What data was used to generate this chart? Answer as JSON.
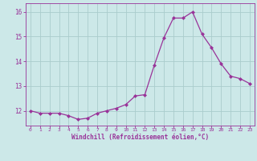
{
  "x": [
    0,
    1,
    2,
    3,
    4,
    5,
    6,
    7,
    8,
    9,
    10,
    11,
    12,
    13,
    14,
    15,
    16,
    17,
    18,
    19,
    20,
    21,
    22,
    23
  ],
  "y": [
    12.0,
    11.9,
    11.9,
    11.9,
    11.8,
    11.65,
    11.7,
    11.9,
    12.0,
    12.1,
    12.25,
    12.6,
    12.65,
    13.85,
    14.95,
    15.75,
    15.75,
    16.0,
    15.1,
    14.55,
    13.9,
    13.4,
    13.3,
    13.1
  ],
  "line_color": "#993399",
  "marker": "D",
  "marker_size": 2.0,
  "bg_color": "#cce8e8",
  "grid_color": "#aacccc",
  "xlabel": "Windchill (Refroidissement éolien,°C)",
  "xlabel_color": "#993399",
  "tick_color": "#993399",
  "ylim": [
    11.4,
    16.35
  ],
  "xlim": [
    -0.5,
    23.5
  ],
  "yticks": [
    12,
    13,
    14,
    15,
    16
  ],
  "xticks": [
    0,
    1,
    2,
    3,
    4,
    5,
    6,
    7,
    8,
    9,
    10,
    11,
    12,
    13,
    14,
    15,
    16,
    17,
    18,
    19,
    20,
    21,
    22,
    23
  ]
}
